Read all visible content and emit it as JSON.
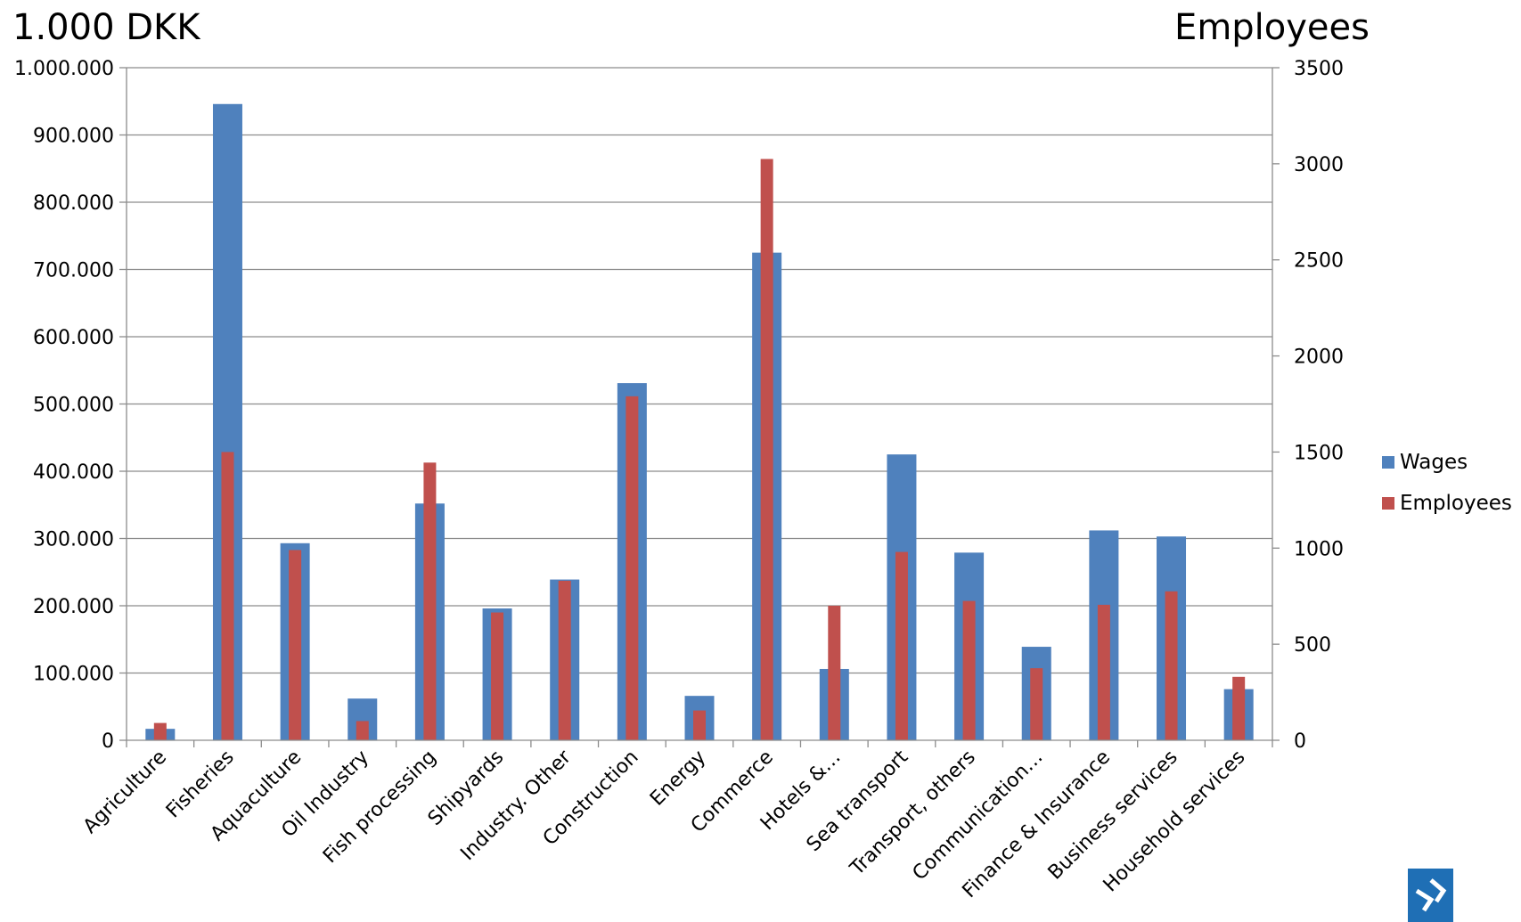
{
  "chart_data": {
    "type": "bar",
    "left_axis_title": "1.000 DKK",
    "right_axis_title": "Employees",
    "categories": [
      "Agriculture",
      "Fisheries",
      "Aquaculture",
      "Oil Industry",
      "Fish processing",
      "Shipyards",
      "Industry. Other",
      "Construction",
      "Energy",
      "Commerce",
      "Hotels &…",
      "Sea transport",
      "Transport, others",
      "Communication…",
      "Finance & Insurance",
      "Business services",
      "Household services"
    ],
    "series": [
      {
        "name": "Wages",
        "axis": "left",
        "color": "#4f81bd",
        "values": [
          17000,
          946000,
          293000,
          62000,
          352000,
          196000,
          239000,
          531000,
          66000,
          725000,
          106000,
          425000,
          279000,
          139000,
          312000,
          303000,
          76000
        ]
      },
      {
        "name": "Employees",
        "axis": "right",
        "color": "#c0504d",
        "values": [
          90,
          1500,
          990,
          100,
          1445,
          665,
          830,
          1790,
          155,
          3025,
          700,
          980,
          725,
          375,
          705,
          775,
          330
        ]
      }
    ],
    "left_axis": {
      "min": 0,
      "max": 1000000,
      "step": 100000,
      "tick_labels": [
        "0",
        "100.000",
        "200.000",
        "300.000",
        "400.000",
        "500.000",
        "600.000",
        "700.000",
        "800.000",
        "900.000",
        "1.000.000"
      ]
    },
    "right_axis": {
      "min": 0,
      "max": 3500,
      "step": 500,
      "tick_labels": [
        "0",
        "500",
        "1000",
        "1500",
        "2000",
        "2500",
        "3000",
        "3500"
      ]
    },
    "grid": true,
    "legend": {
      "position": "right",
      "entries": [
        "Wages",
        "Employees"
      ]
    }
  },
  "logo": {
    "name": "corner-logo-icon",
    "color": "#1f6fb5"
  }
}
